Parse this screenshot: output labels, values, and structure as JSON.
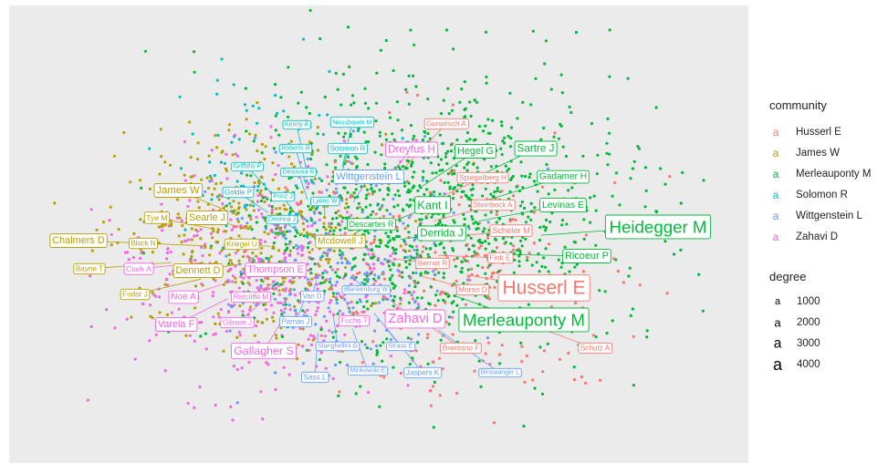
{
  "chart_data": {
    "type": "scatter",
    "title": "",
    "xlabel": "",
    "ylabel": "",
    "grid": false,
    "legend_placement": "right",
    "communities": [
      {
        "name": "Husserl E",
        "color": "#F8766D"
      },
      {
        "name": "James W",
        "color": "#B79F00"
      },
      {
        "name": "Merleauponty M",
        "color": "#00BA38"
      },
      {
        "name": "Solomon R",
        "color": "#00BFC4"
      },
      {
        "name": "Wittgenstein L",
        "color": "#619CFF"
      },
      {
        "name": "Zahavi D",
        "color": "#F564E3"
      }
    ],
    "legends": {
      "community_title": "community",
      "degree_title": "degree",
      "degree_levels": [
        "1000",
        "2000",
        "3000",
        "4000"
      ],
      "key_glyph": "a"
    },
    "labels": [
      {
        "text": "Heidegger M",
        "community": 2,
        "degree": 4000
      },
      {
        "text": "Husserl E",
        "community": 0,
        "degree": 4600
      },
      {
        "text": "Merleauponty M",
        "community": 2,
        "degree": 4000
      },
      {
        "text": "Sartre J",
        "community": 2,
        "degree": 2200
      },
      {
        "text": "Gadamer H",
        "community": 2,
        "degree": 1800
      },
      {
        "text": "Levinas E",
        "community": 2,
        "degree": 1900
      },
      {
        "text": "Ricoeur P",
        "community": 2,
        "degree": 2000
      },
      {
        "text": "Kant I",
        "community": 2,
        "degree": 2500
      },
      {
        "text": "Derrida J",
        "community": 2,
        "degree": 2200
      },
      {
        "text": "Hegel G",
        "community": 2,
        "degree": 2000
      },
      {
        "text": "Descartes R",
        "community": 2,
        "degree": 1500
      },
      {
        "text": "Gurwitsch A",
        "community": 0,
        "degree": 1300
      },
      {
        "text": "Spiegelberg H",
        "community": 0,
        "degree": 1300
      },
      {
        "text": "Steinbock A",
        "community": 0,
        "degree": 1300
      },
      {
        "text": "Scheler M",
        "community": 0,
        "degree": 1600
      },
      {
        "text": "Fink E",
        "community": 0,
        "degree": 1300
      },
      {
        "text": "Bernet R",
        "community": 0,
        "degree": 1300
      },
      {
        "text": "Moran D",
        "community": 0,
        "degree": 1300
      },
      {
        "text": "Brentano F",
        "community": 0,
        "degree": 1300
      },
      {
        "text": "Schutz A",
        "community": 0,
        "degree": 1300
      },
      {
        "text": "Dreyfus H",
        "community": 5,
        "degree": 2200
      },
      {
        "text": "Zahavi D",
        "community": 5,
        "degree": 3000
      },
      {
        "text": "Gallagher S",
        "community": 5,
        "degree": 2400
      },
      {
        "text": "Varela F",
        "community": 5,
        "degree": 2000
      },
      {
        "text": "Noe A",
        "community": 5,
        "degree": 1800
      },
      {
        "text": "Clark A",
        "community": 5,
        "degree": 1400
      },
      {
        "text": "Thompson E",
        "community": 5,
        "degree": 2000
      },
      {
        "text": "Ratcliffe M",
        "community": 5,
        "degree": 1300
      },
      {
        "text": "Gibson J",
        "community": 5,
        "degree": 1300
      },
      {
        "text": "Fuchs T",
        "community": 5,
        "degree": 1300
      },
      {
        "text": "James W",
        "community": 1,
        "degree": 2100
      },
      {
        "text": "Searle J",
        "community": 1,
        "degree": 2000
      },
      {
        "text": "Tye M",
        "community": 1,
        "degree": 1400
      },
      {
        "text": "Chalmers D",
        "community": 1,
        "degree": 2000
      },
      {
        "text": "Block N",
        "community": 1,
        "degree": 1200
      },
      {
        "text": "Bayne T",
        "community": 1,
        "degree": 1300
      },
      {
        "text": "Dennett D",
        "community": 1,
        "degree": 2000
      },
      {
        "text": "Fodor J",
        "community": 1,
        "degree": 1300
      },
      {
        "text": "Kriegel U",
        "community": 1,
        "degree": 1300
      },
      {
        "text": "Mcdowell J",
        "community": 1,
        "degree": 1800
      },
      {
        "text": "Wittgenstein L",
        "community": 4,
        "degree": 2100
      },
      {
        "text": "Parnas J",
        "community": 4,
        "degree": 1200
      },
      {
        "text": "Van D",
        "community": 4,
        "degree": 1200
      },
      {
        "text": "Blankenburg W",
        "community": 4,
        "degree": 1000
      },
      {
        "text": "Stanghellini G",
        "community": 4,
        "degree": 1000
      },
      {
        "text": "Straus E",
        "community": 4,
        "degree": 1000
      },
      {
        "text": "Minkowski E",
        "community": 4,
        "degree": 1000
      },
      {
        "text": "Jaspers K",
        "community": 4,
        "degree": 1300
      },
      {
        "text": "Binswanger L",
        "community": 4,
        "degree": 1000
      },
      {
        "text": "Sass L",
        "community": 4,
        "degree": 1300
      },
      {
        "text": "Kenny A",
        "community": 3,
        "degree": 1000
      },
      {
        "text": "Nussbaum M",
        "community": 3,
        "degree": 1100
      },
      {
        "text": "Roberts R",
        "community": 3,
        "degree": 1000
      },
      {
        "text": "Solomon R",
        "community": 3,
        "degree": 1200
      },
      {
        "text": "Griffiths P",
        "community": 3,
        "degree": 1000
      },
      {
        "text": "Deonna J",
        "community": 3,
        "degree": 1000
      },
      {
        "text": "Goldie P",
        "community": 3,
        "degree": 1200
      },
      {
        "text": "Prinz J",
        "community": 3,
        "degree": 1000
      },
      {
        "text": "Lyons W",
        "community": 3,
        "degree": 1000
      },
      {
        "text": "Desousa R",
        "community": 3,
        "degree": 1000
      }
    ]
  }
}
